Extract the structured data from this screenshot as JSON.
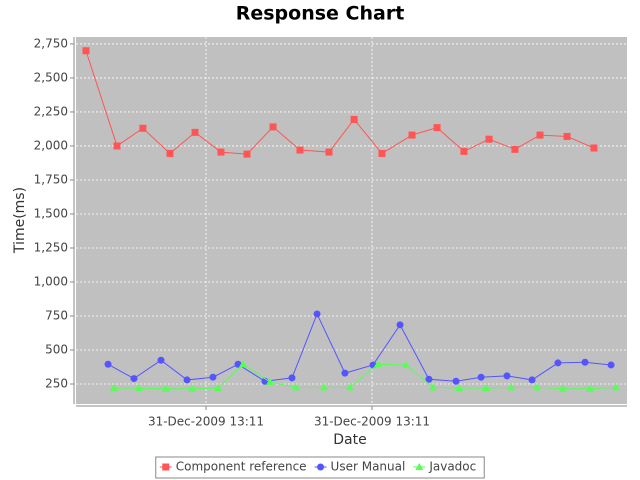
{
  "chart_data": {
    "type": "line",
    "title": "Response Chart",
    "x_label": "Date",
    "y_label": "Time(ms)",
    "xlim": [
      0.217,
      3.536
    ],
    "xticks": [
      {
        "value": 1,
        "label": "31-Dec-2009 13:11"
      },
      {
        "value": 2,
        "label": "31-Dec-2009 13:11"
      }
    ],
    "ylim": [
      103,
      2801
    ],
    "yticks": [
      250,
      500,
      750,
      {
        "value": 1000,
        "label": "1,000"
      },
      {
        "value": 1250,
        "label": "1,250"
      },
      {
        "value": 1500,
        "label": "1,500"
      },
      {
        "value": 1750,
        "label": "1,750"
      },
      {
        "value": 2000,
        "label": "2,000"
      },
      {
        "value": 2250,
        "label": "2,250"
      },
      {
        "value": 2500,
        "label": "2,500"
      },
      {
        "value": 2750,
        "label": "2,750"
      }
    ],
    "grid": true,
    "background": "#c0c0c0",
    "legend": "bottom",
    "series": [
      {
        "name": "Component reference",
        "color": "#ff5555",
        "marker": "square",
        "x": [
          0.277,
          0.464,
          0.62,
          0.783,
          0.934,
          1.09,
          1.247,
          1.404,
          1.566,
          1.741,
          1.892,
          2.06,
          2.241,
          2.392,
          2.554,
          2.705,
          2.861,
          3.012,
          3.175,
          3.337
        ],
        "values": [
          2700,
          2000,
          2130,
          1945,
          2100,
          1955,
          1940,
          2140,
          1970,
          1955,
          2195,
          1945,
          2080,
          2135,
          1960,
          2050,
          1975,
          2080,
          2070,
          1985
        ]
      },
      {
        "name": "User Manual",
        "color": "#5555ff",
        "marker": "circle",
        "x": [
          0.41,
          0.566,
          0.729,
          0.886,
          1.042,
          1.193,
          1.355,
          1.518,
          1.669,
          1.837,
          2.006,
          2.169,
          2.343,
          2.506,
          2.657,
          2.813,
          2.964,
          3.12,
          3.283,
          3.44
        ],
        "values": [
          395,
          290,
          425,
          280,
          300,
          395,
          270,
          295,
          765,
          330,
          390,
          685,
          285,
          270,
          300,
          310,
          280,
          405,
          410,
          390
        ]
      },
      {
        "name": "Javadoc",
        "color": "#55ff55",
        "marker": "triangle",
        "x": [
          0.446,
          0.596,
          0.759,
          0.916,
          1.072,
          1.223,
          1.386,
          1.542,
          1.711,
          1.867,
          2.036,
          2.205,
          2.367,
          2.524,
          2.687,
          2.837,
          2.994,
          3.151,
          3.313,
          3.47
        ],
        "values": [
          220,
          220,
          215,
          215,
          220,
          395,
          265,
          225,
          225,
          225,
          395,
          390,
          225,
          220,
          220,
          225,
          225,
          215,
          215,
          225
        ]
      }
    ]
  }
}
